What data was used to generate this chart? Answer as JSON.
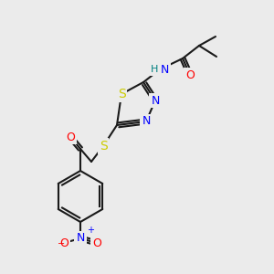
{
  "bg_color": "#ebebeb",
  "bond_color": "#1a1a1a",
  "bond_width": 1.5,
  "atom_colors": {
    "S": "#cccc00",
    "N": "#0000ff",
    "O": "#ff0000",
    "H": "#008080",
    "C": "#1a1a1a"
  },
  "font_size": 9,
  "figsize": [
    3.0,
    3.0
  ],
  "dpi": 100
}
